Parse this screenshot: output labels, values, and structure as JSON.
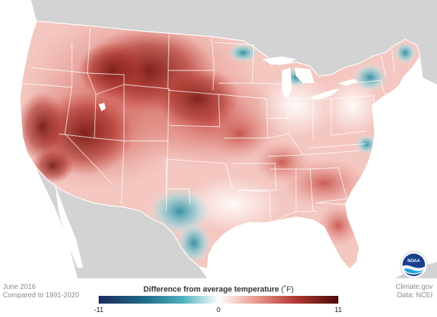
{
  "footer": {
    "period": "June 2016",
    "baseline": "Compared to 1991-2020",
    "source_site": "Climate.gov",
    "source_data": "Data: NCEI"
  },
  "legend": {
    "title": "Difference from average temperature",
    "unit": "(˚F)",
    "min_label": "-11",
    "mid_label": "0",
    "max_label": "11",
    "min": -11,
    "max": 11
  },
  "logo": {
    "text": "NOAA"
  },
  "colors": {
    "cold_extreme": "#1b2a5e",
    "cold": "#2f8fa3",
    "neutral": "#ffffff",
    "warm": "#d95f55",
    "warm_extreme": "#4a0a0a",
    "land_other": "#d3d3d3",
    "ocean": "#ffffff",
    "state_lines": "#ffffff"
  }
}
